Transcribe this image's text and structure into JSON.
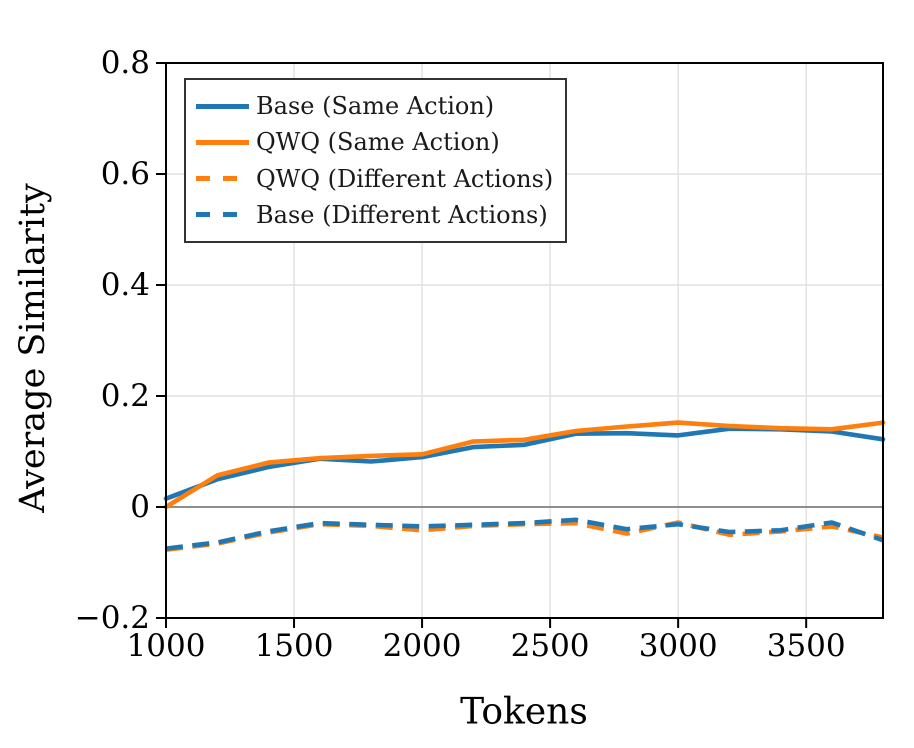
{
  "figure": {
    "background": "#ffffff",
    "text_color": "#000000",
    "grid_color": "#e0e0e0",
    "zero_line_color": "#808080",
    "spine_color": "#000000"
  },
  "chart_data": {
    "type": "line",
    "title": "",
    "xlabel": "Tokens",
    "ylabel": "Average Similarity",
    "xlim": [
      1000,
      3800
    ],
    "ylim": [
      -0.2,
      0.8
    ],
    "grid": true,
    "zero_line": true,
    "legend_position": "upper-left",
    "xticks": {
      "values": [
        1000,
        1500,
        2000,
        2500,
        3000,
        3500
      ],
      "labels": [
        "1000",
        "1500",
        "2000",
        "2500",
        "3000",
        "3500"
      ]
    },
    "yticks": {
      "values": [
        -0.2,
        0,
        0.2,
        0.4,
        0.6,
        0.8
      ],
      "labels": [
        "−0.2",
        "0",
        "0.2",
        "0.4",
        "0.6",
        "0.8"
      ]
    },
    "x": [
      1000,
      1200,
      1400,
      1600,
      1800,
      2000,
      2200,
      2400,
      2600,
      2800,
      3000,
      3200,
      3400,
      3600,
      3800
    ],
    "series": [
      {
        "name": "Base (Same Action)",
        "color": "#1f77b4",
        "style": "solid",
        "values": [
          0.015,
          0.05,
          0.072,
          0.087,
          0.082,
          0.09,
          0.108,
          0.112,
          0.132,
          0.133,
          0.129,
          0.141,
          0.14,
          0.136,
          0.122
        ]
      },
      {
        "name": "QWQ (Same Action)",
        "color": "#ff7f0e",
        "style": "solid",
        "values": [
          0.0,
          0.057,
          0.08,
          0.088,
          0.092,
          0.095,
          0.118,
          0.121,
          0.137,
          0.145,
          0.152,
          0.146,
          0.142,
          0.14,
          0.152
        ]
      },
      {
        "name": "QWQ (Different Actions)",
        "color": "#ff7f0e",
        "style": "dashed",
        "values": [
          -0.077,
          -0.066,
          -0.046,
          -0.031,
          -0.034,
          -0.042,
          -0.034,
          -0.031,
          -0.029,
          -0.048,
          -0.028,
          -0.05,
          -0.044,
          -0.035,
          -0.055
        ]
      },
      {
        "name": "Base (Different Actions)",
        "color": "#1f77b4",
        "style": "dashed",
        "values": [
          -0.075,
          -0.064,
          -0.044,
          -0.029,
          -0.032,
          -0.035,
          -0.032,
          -0.029,
          -0.023,
          -0.04,
          -0.031,
          -0.045,
          -0.042,
          -0.028,
          -0.06
        ]
      }
    ]
  }
}
